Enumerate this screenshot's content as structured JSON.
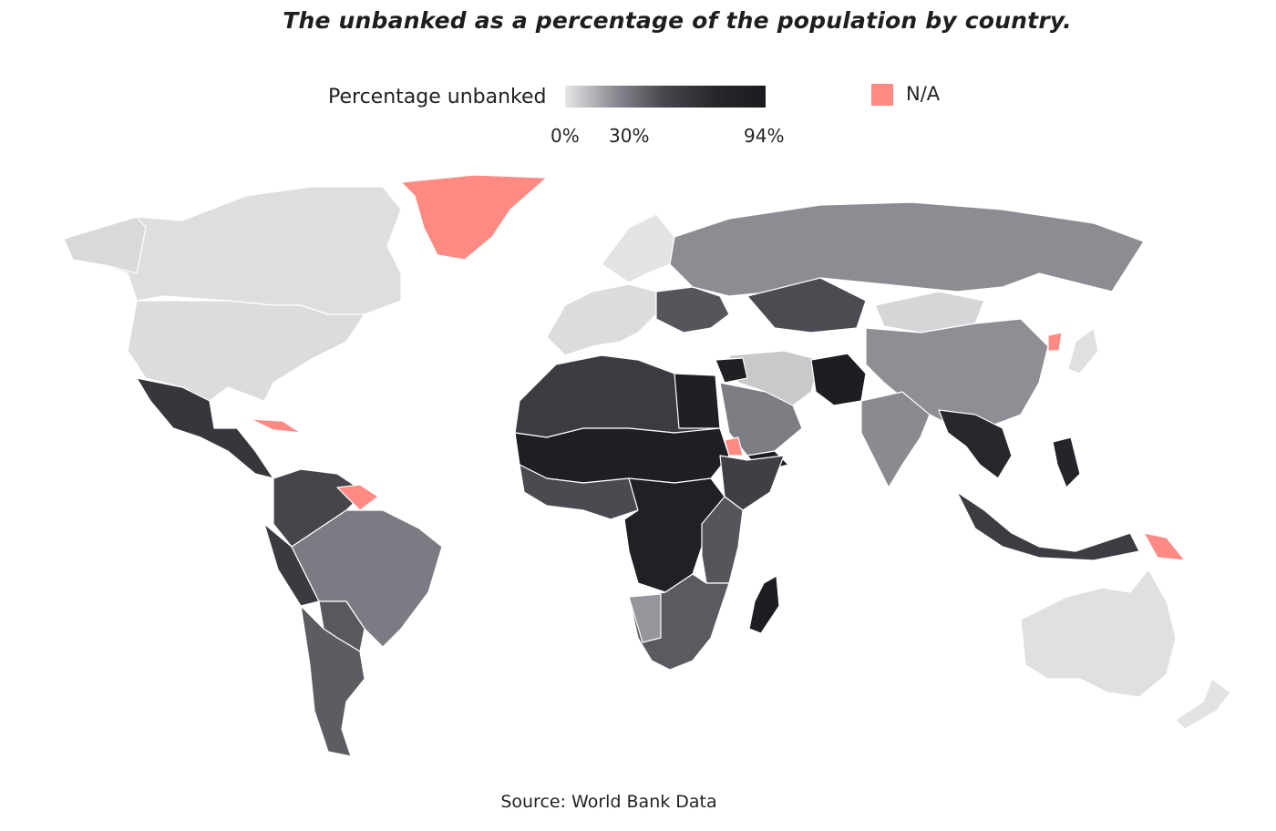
{
  "title": "The unbanked as a percentage of the population by country.",
  "legend": {
    "label": "Percentage unbanked",
    "ticks": [
      "0%",
      "30%",
      "94%"
    ],
    "scale_min": 0,
    "scale_mid": 30,
    "scale_max": 94,
    "color_low": "#e6e6e8",
    "color_high": "#1b1c20",
    "na_label": "N/A",
    "na_color": "#ff8a84"
  },
  "source": "Source: World Bank Data"
}
